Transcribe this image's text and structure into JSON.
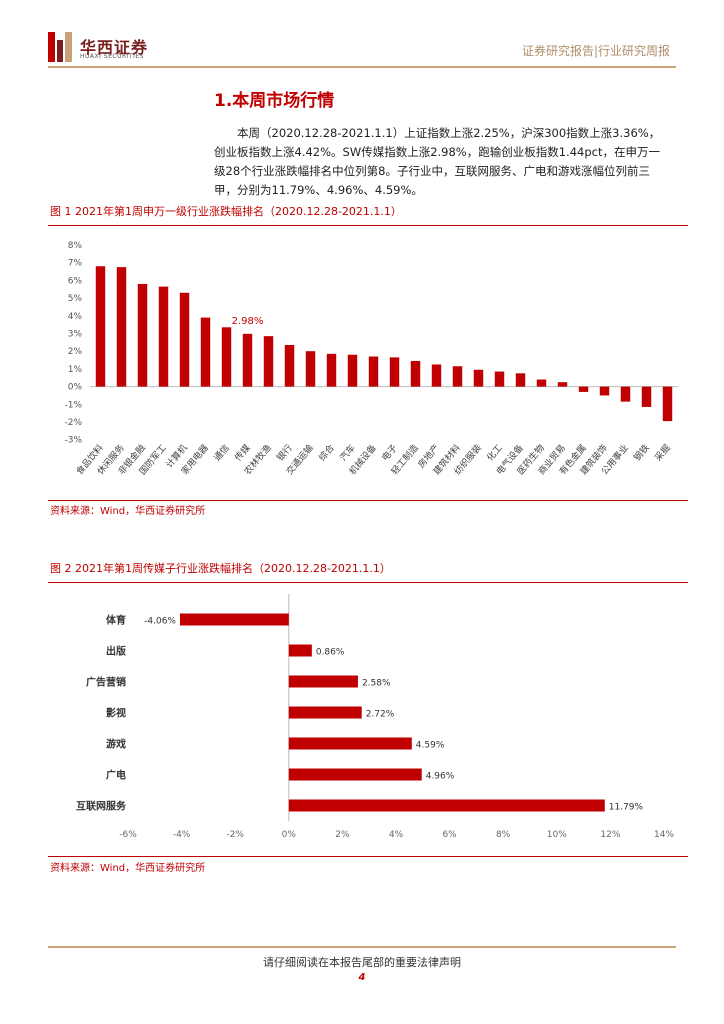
{
  "header": {
    "logo_cn": "华西证券",
    "logo_en": "HUAXI SECURITIES",
    "right": "证券研究报告|行业研究周报"
  },
  "section": {
    "title": "1.本周市场行情",
    "paragraph": "本周（2020.12.28-2021.1.1）上证指数上涨2.25%，沪深300指数上涨3.36%，创业板指数上涨4.42%。SW传媒指数上涨2.98%，跑输创业板指数1.44pct，在申万一级28个行业涨跌幅排名中位列第8。子行业中，互联网服务、广电和游戏涨幅位列前三甲，分别为11.79%、4.96%、4.59%。"
  },
  "figure1": {
    "title": "图 1 2021年第1周申万一级行业涨跌幅排名（2020.12.28-2021.1.1）",
    "source": "资料来源：Wind，华西证券研究所"
  },
  "figure2": {
    "title": "图 2 2021年第1周传媒子行业涨跌幅排名（2020.12.28-2021.1.1）",
    "source": "资料来源：Wind，华西证券研究所"
  },
  "footer": {
    "text": "请仔细阅读在本报告尾部的重要法律声明",
    "page": "4"
  },
  "colors": {
    "bar": "#c00000",
    "accent": "#c00000",
    "gold": "#c9a27a"
  },
  "chart_data": [
    {
      "type": "bar",
      "title": "",
      "xlabel": "",
      "ylabel": "",
      "ylim": [
        -3,
        8
      ],
      "yticks": [
        "8%",
        "7%",
        "6%",
        "5%",
        "4%",
        "3%",
        "2%",
        "1%",
        "0%",
        "-1%",
        "-2%",
        "-3%"
      ],
      "categories": [
        "食品饮料",
        "休闲服务",
        "非银金融",
        "国防军工",
        "计算机",
        "家用电器",
        "通信",
        "传媒",
        "农林牧渔",
        "银行",
        "交通运输",
        "综合",
        "汽车",
        "机械设备",
        "电子",
        "轻工制造",
        "房地产",
        "建筑材料",
        "纺织服装",
        "化工",
        "电气设备",
        "医药生物",
        "商业贸易",
        "有色金属",
        "建筑装饰",
        "公用事业",
        "钢铁",
        "采掘"
      ],
      "values": [
        6.8,
        6.75,
        5.8,
        5.65,
        5.3,
        3.9,
        3.35,
        2.98,
        2.85,
        2.35,
        2.0,
        1.85,
        1.8,
        1.7,
        1.65,
        1.45,
        1.25,
        1.15,
        0.95,
        0.85,
        0.75,
        0.4,
        0.25,
        -0.3,
        -0.5,
        -0.85,
        -1.15,
        -1.95
      ],
      "annotations": [
        {
          "category": "传媒",
          "text": "2.98%"
        }
      ]
    },
    {
      "type": "bar",
      "orientation": "horizontal",
      "title": "",
      "xlabel": "",
      "ylabel": "",
      "xlim": [
        -6,
        14
      ],
      "xticks": [
        "-6%",
        "-4%",
        "-2%",
        "0%",
        "2%",
        "4%",
        "6%",
        "8%",
        "10%",
        "12%",
        "14%"
      ],
      "categories": [
        "体育",
        "出版",
        "广告营销",
        "影视",
        "游戏",
        "广电",
        "互联网服务"
      ],
      "values": [
        -4.06,
        0.86,
        2.58,
        2.72,
        4.59,
        4.96,
        11.79
      ],
      "labels": [
        "-4.06%",
        "0.86%",
        "2.58%",
        "2.72%",
        "4.59%",
        "4.96%",
        "11.79%"
      ]
    }
  ]
}
